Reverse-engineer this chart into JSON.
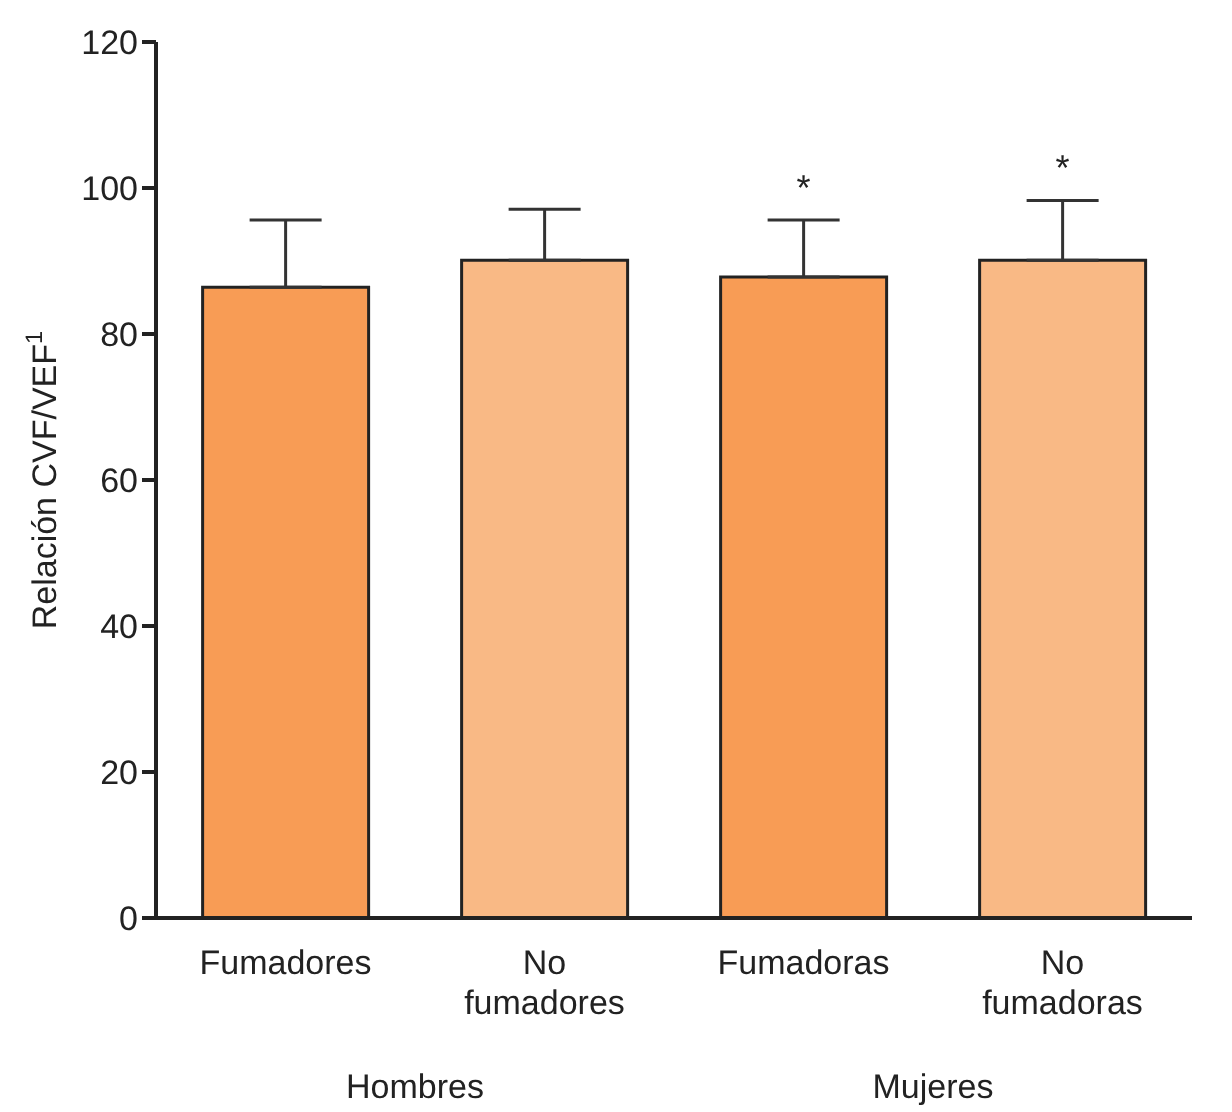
{
  "chart_data": {
    "type": "bar",
    "ylabel": "Relación CVF/VEF$^{1}$",
    "categories": [
      "Fumadores",
      "No fumadores",
      "Fumadoras",
      "No fumadoras"
    ],
    "values": [
      86.4,
      90.1,
      87.8,
      90.1
    ],
    "colors": [
      "#f89c55",
      "#f9b985",
      "#f89c55",
      "#f9b985"
    ],
    "errors": [
      [
        86.4,
        95.6
      ],
      [
        90.1,
        97.1
      ],
      [
        87.8,
        95.6
      ],
      [
        90.1,
        98.3
      ]
    ],
    "ylim": [
      0,
      120
    ],
    "yticks": [
      0,
      20,
      40,
      60,
      80,
      100,
      120
    ],
    "grid": false,
    "legend": false,
    "value_labels": [
      null,
      null,
      "*",
      "*"
    ],
    "annotations": [
      "Hombres",
      "Mujeres"
    ]
  }
}
